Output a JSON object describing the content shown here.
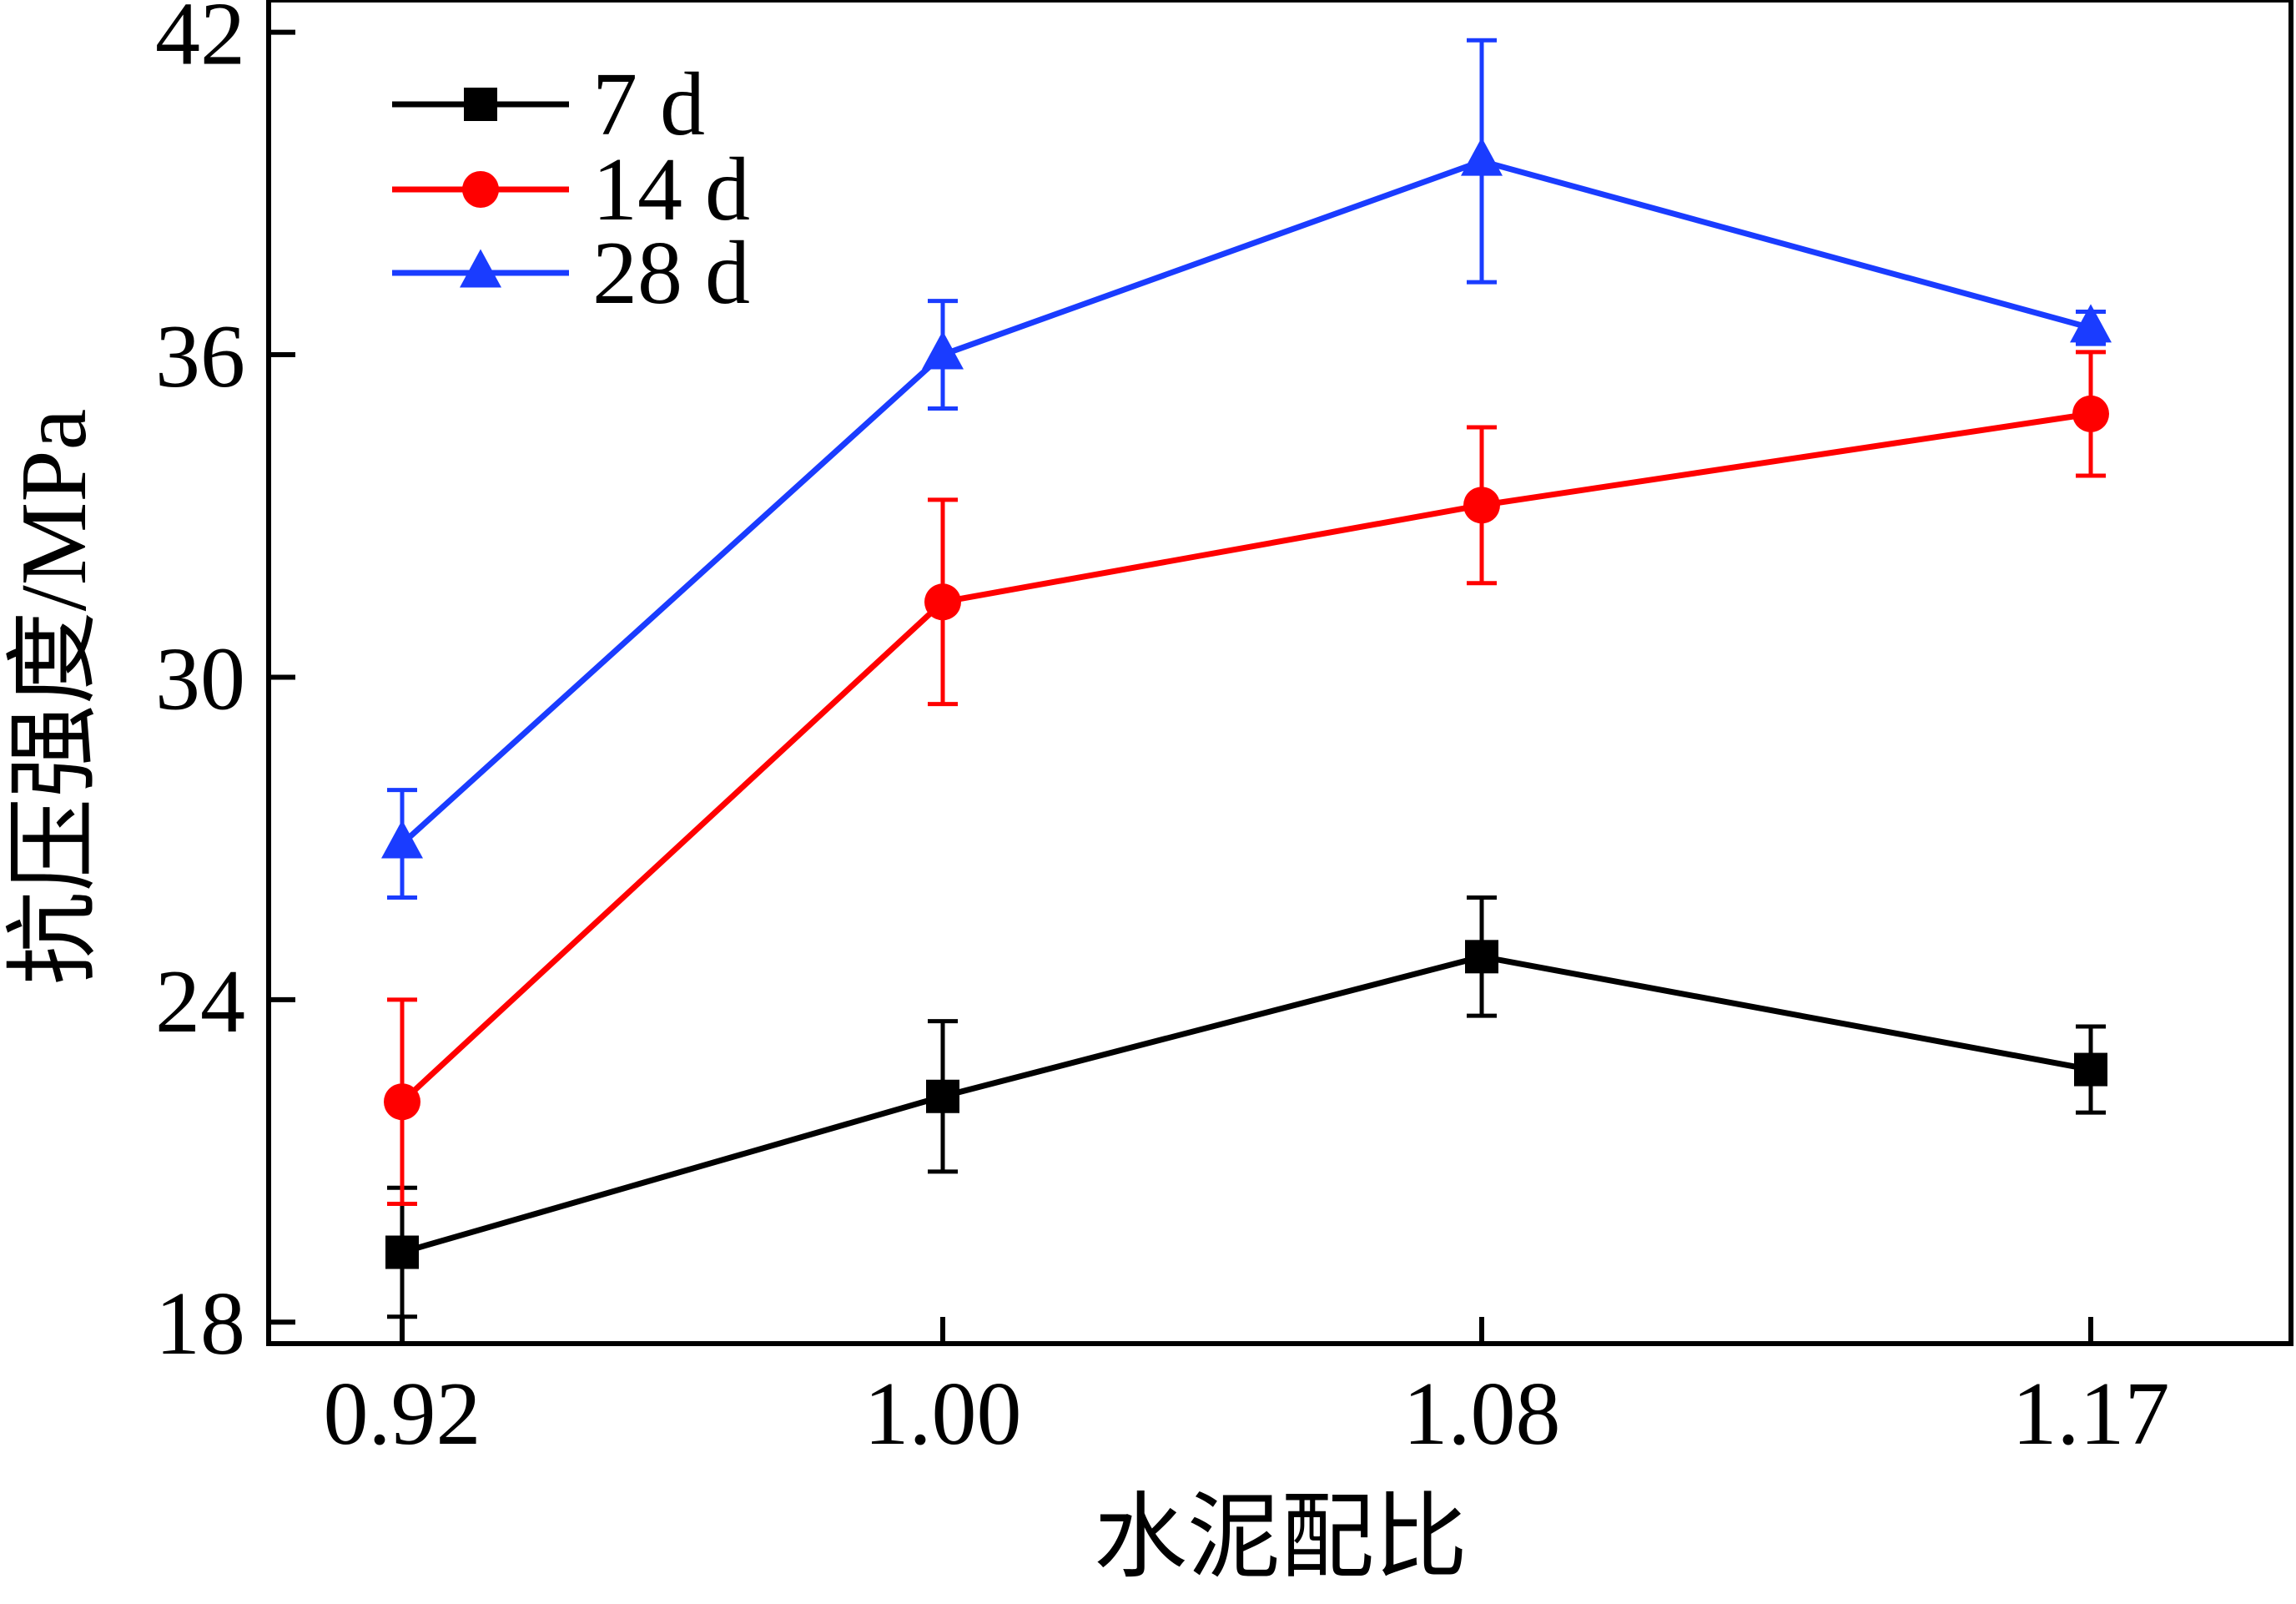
{
  "chart_data": {
    "type": "line",
    "title": "",
    "xlabel": "水泥配比",
    "ylabel": "抗压强度/MPa",
    "x_tick_labels": [
      "0.92",
      "1.00",
      "1.08",
      "1.17"
    ],
    "y_ticks": [
      18,
      24,
      30,
      36,
      42
    ],
    "y_tick_labels": [
      "18",
      "24",
      "30",
      "36",
      "42"
    ],
    "ylim": [
      17.6,
      42.6
    ],
    "grid": false,
    "legend_position": "top-left",
    "series": [
      {
        "name": "7 d",
        "color": "#000000",
        "marker": "square",
        "values": [
          19.3,
          22.2,
          24.8,
          22.7
        ],
        "errors": [
          1.2,
          1.4,
          1.1,
          0.8
        ]
      },
      {
        "name": "14 d",
        "color": "#ff0000",
        "marker": "circle",
        "values": [
          22.1,
          31.4,
          33.2,
          34.9
        ],
        "errors": [
          1.9,
          1.9,
          1.45,
          1.15
        ]
      },
      {
        "name": "28 d",
        "color": "#1a3cff",
        "marker": "triangle",
        "values": [
          26.9,
          36.0,
          39.6,
          36.5
        ],
        "errors": [
          1.0,
          1.0,
          2.25,
          0.3
        ]
      }
    ]
  }
}
